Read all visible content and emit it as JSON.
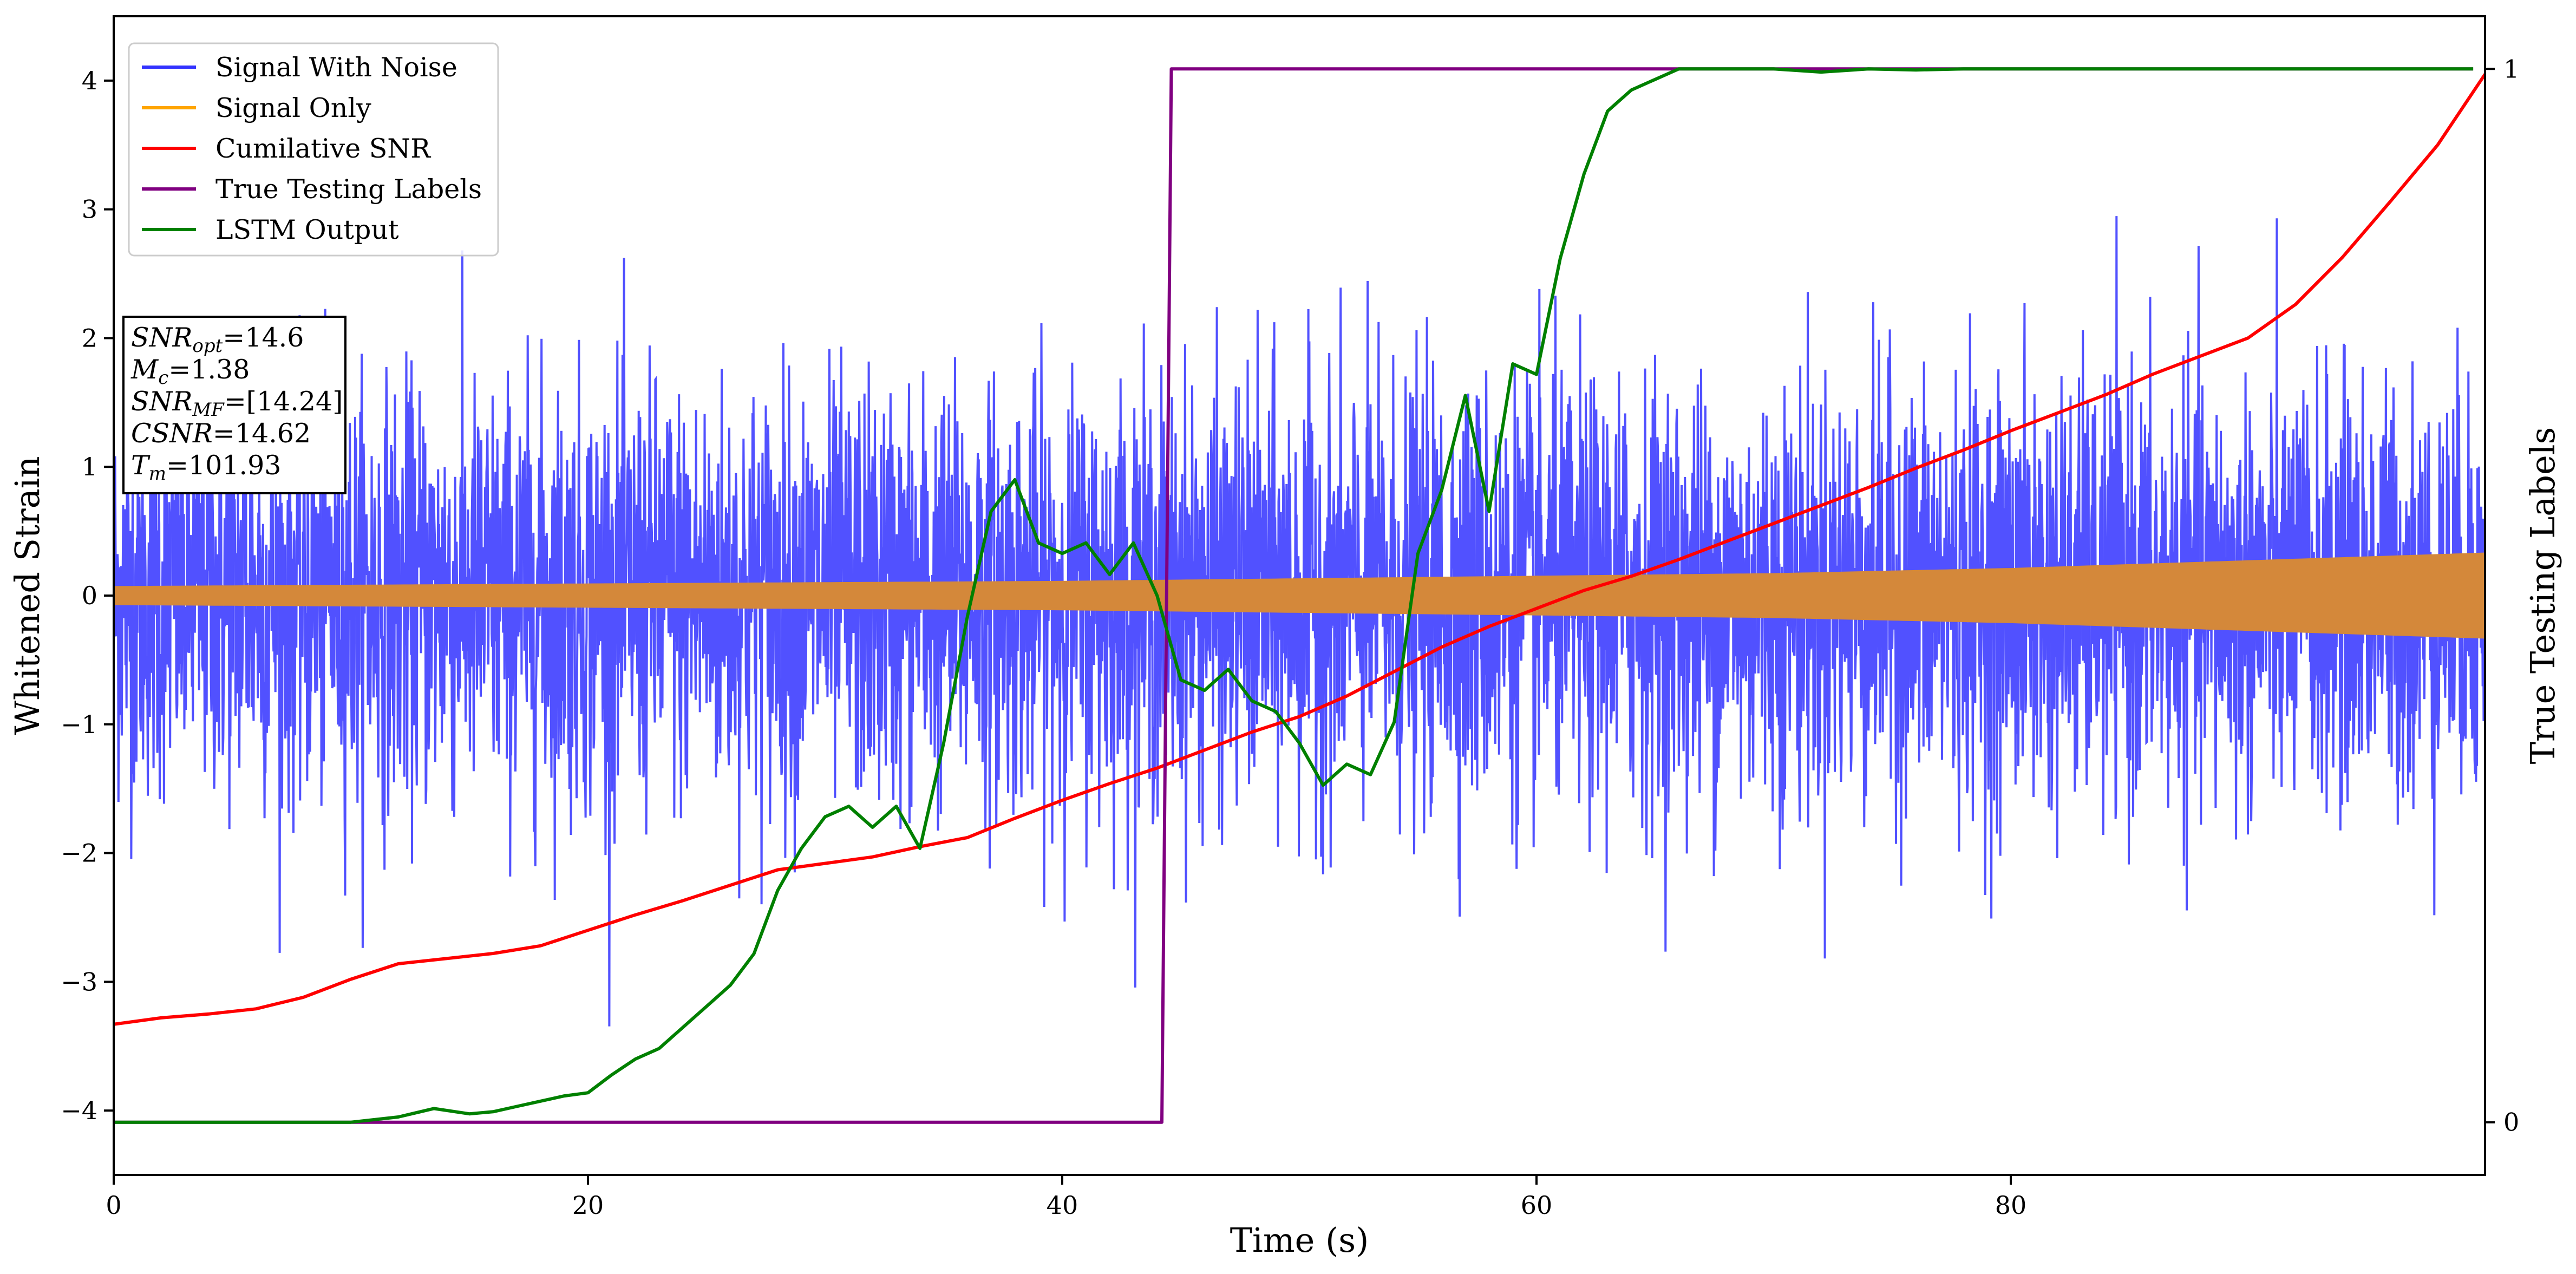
{
  "chart_data": {
    "type": "line",
    "xlabel": "Time (s)",
    "ylabel": "Whitened Strain",
    "y2label": "True Testing Labels",
    "xlim": [
      0,
      100
    ],
    "ylim": [
      -4.5,
      4.5
    ],
    "y2lim": [
      -0.05,
      1.05
    ],
    "x_ticks": [
      0,
      20,
      40,
      60,
      80
    ],
    "y_ticks": [
      -4,
      -3,
      -2,
      -1,
      0,
      1,
      2,
      3,
      4
    ],
    "y2_ticks": [
      0,
      1
    ],
    "x_tick_labels": [
      "0",
      "20",
      "40",
      "60",
      "80"
    ],
    "y_tick_labels": [
      "−4",
      "−3",
      "−2",
      "−1",
      "0",
      "1",
      "2",
      "3",
      "4"
    ],
    "y2_tick_labels": [
      "0",
      "1"
    ],
    "legend_position": "upper-left",
    "info_box": [
      {
        "sym": "SNR",
        "sub": "opt",
        "value": "=14.6"
      },
      {
        "sym": "M",
        "sub": "c",
        "value": "=1.38"
      },
      {
        "sym": "SNR",
        "sub": "MF",
        "value": "=[14.24]"
      },
      {
        "sym": "CSNR",
        "sub": "",
        "value": "=14.62"
      },
      {
        "sym": "T",
        "sub": "m",
        "value": "=101.93"
      }
    ],
    "series": [
      {
        "name": "Signal With Noise",
        "color": "#3333ff",
        "axis": "left",
        "style": "noise",
        "envelope_x": [
          0,
          20,
          40,
          60,
          80,
          100
        ],
        "envelope_y": [
          2.8,
          3.0,
          2.9,
          3.0,
          3.0,
          2.9
        ]
      },
      {
        "name": "Signal Only",
        "color": "#ffa500",
        "fill_color": "#d4883a",
        "axis": "left",
        "style": "band",
        "x": [
          0,
          10,
          20,
          30,
          40,
          50,
          60,
          70,
          80,
          90,
          100
        ],
        "amplitude": [
          0.07,
          0.08,
          0.09,
          0.1,
          0.11,
          0.13,
          0.15,
          0.17,
          0.21,
          0.27,
          0.33
        ]
      },
      {
        "name": "Cumilative SNR",
        "color": "#ff0000",
        "axis": "left",
        "x": [
          0,
          2,
          4,
          6,
          8,
          10,
          12,
          14,
          16,
          18,
          20,
          22,
          24,
          26,
          28,
          30,
          32,
          34,
          36,
          38,
          40,
          42,
          44,
          46,
          48,
          50,
          52,
          54,
          56,
          58,
          60,
          62,
          64,
          66,
          68,
          70,
          72,
          74,
          76,
          78,
          80,
          82,
          84,
          86,
          88,
          90,
          92,
          94,
          96,
          98,
          100
        ],
        "y": [
          -3.33,
          -3.28,
          -3.25,
          -3.21,
          -3.12,
          -2.98,
          -2.86,
          -2.82,
          -2.78,
          -2.72,
          -2.6,
          -2.48,
          -2.37,
          -2.25,
          -2.13,
          -2.08,
          -2.03,
          -1.95,
          -1.88,
          -1.73,
          -1.59,
          -1.46,
          -1.34,
          -1.2,
          -1.06,
          -0.94,
          -0.78,
          -0.59,
          -0.4,
          -0.24,
          -0.1,
          0.04,
          0.15,
          0.28,
          0.42,
          0.56,
          0.7,
          0.84,
          0.99,
          1.13,
          1.28,
          1.42,
          1.56,
          1.72,
          1.86,
          2.0,
          2.26,
          2.63,
          3.06,
          3.5,
          4.05
        ]
      },
      {
        "name": "True Testing Labels",
        "color": "#800080",
        "axis": "right",
        "x": [
          0,
          44.2,
          44.6,
          99.5
        ],
        "y": [
          0,
          0,
          1,
          1
        ]
      },
      {
        "name": "LSTM Output",
        "color": "#008000",
        "axis": "right",
        "x": [
          0,
          10,
          12,
          13.5,
          15,
          16,
          17,
          18,
          19,
          20,
          21,
          22,
          23,
          24,
          25,
          26,
          27,
          28,
          29,
          30,
          31,
          32,
          33,
          34,
          35,
          36,
          37,
          38,
          39,
          40,
          41,
          42,
          43,
          44,
          45,
          46,
          47,
          48,
          49,
          50,
          51,
          52,
          53,
          54,
          55,
          56,
          57,
          58,
          59,
          60,
          61,
          62,
          63,
          64,
          65,
          66,
          67,
          68,
          70,
          72,
          74,
          76,
          78,
          80,
          99.5
        ],
        "y": [
          0,
          0,
          0.005,
          0.013,
          0.008,
          0.01,
          0.015,
          0.02,
          0.025,
          0.028,
          0.045,
          0.06,
          0.07,
          0.09,
          0.11,
          0.13,
          0.16,
          0.22,
          0.26,
          0.29,
          0.3,
          0.28,
          0.3,
          0.26,
          0.36,
          0.48,
          0.58,
          0.61,
          0.55,
          0.54,
          0.55,
          0.52,
          0.55,
          0.5,
          0.42,
          0.41,
          0.43,
          0.4,
          0.39,
          0.36,
          0.32,
          0.34,
          0.33,
          0.38,
          0.54,
          0.6,
          0.69,
          0.58,
          0.72,
          0.71,
          0.82,
          0.9,
          0.96,
          0.98,
          0.99,
          1.0,
          1.0,
          1.0,
          1.0,
          0.997,
          1.0,
          0.999,
          1.0,
          1.0,
          1.0
        ]
      }
    ]
  }
}
